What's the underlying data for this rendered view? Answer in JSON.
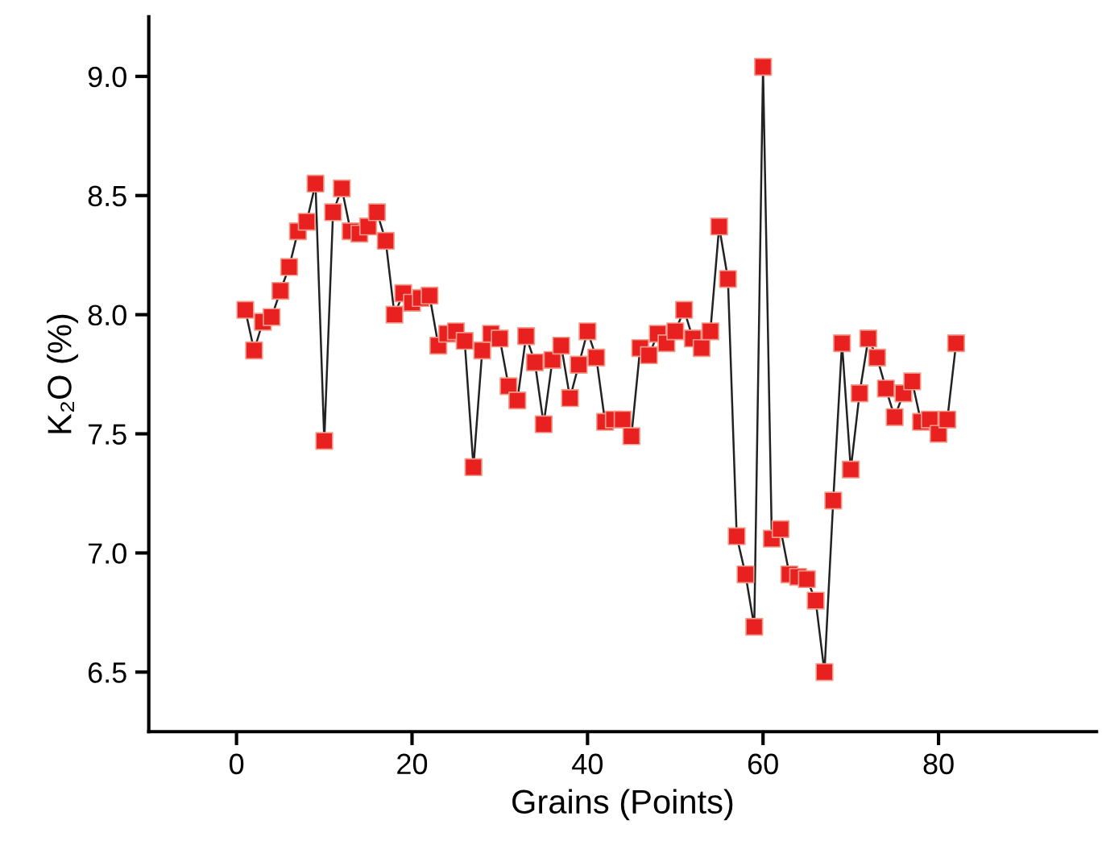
{
  "chart_data": {
    "type": "line",
    "xlabel": "Grains (Points)",
    "ylabel": "K₂O (%)",
    "x": [
      1,
      2,
      3,
      4,
      5,
      6,
      7,
      8,
      9,
      10,
      11,
      12,
      13,
      14,
      15,
      16,
      17,
      18,
      19,
      20,
      21,
      22,
      23,
      24,
      25,
      26,
      27,
      28,
      29,
      30,
      31,
      32,
      33,
      34,
      35,
      36,
      37,
      38,
      39,
      40,
      41,
      42,
      43,
      44,
      45,
      46,
      47,
      48,
      49,
      50,
      51,
      52,
      53,
      54,
      55,
      56,
      57,
      58,
      59,
      60,
      61,
      62,
      63,
      64,
      65,
      66,
      67,
      68,
      69,
      70,
      71,
      72,
      73,
      74,
      75,
      76,
      77,
      78,
      79,
      80,
      81,
      82
    ],
    "series": [
      {
        "color": "#e8201f",
        "values": [
          8.02,
          7.85,
          7.97,
          7.99,
          8.1,
          8.2,
          8.35,
          8.39,
          8.55,
          7.47,
          8.43,
          8.53,
          8.35,
          8.34,
          8.37,
          8.43,
          8.31,
          8.0,
          8.09,
          8.05,
          8.07,
          8.08,
          7.87,
          7.92,
          7.93,
          7.89,
          7.36,
          7.85,
          7.92,
          7.9,
          7.7,
          7.64,
          7.91,
          7.8,
          7.54,
          7.81,
          7.87,
          7.65,
          7.79,
          7.93,
          7.82,
          7.55,
          7.56,
          7.56,
          7.49,
          7.86,
          7.83,
          7.92,
          7.88,
          7.93,
          8.02,
          7.9,
          7.86,
          7.93,
          8.37,
          8.15,
          7.07,
          6.91,
          6.69,
          9.04,
          7.06,
          7.1,
          6.91,
          6.9,
          6.89,
          6.8,
          6.5,
          7.22,
          7.88,
          7.35,
          7.67,
          7.9,
          7.82,
          7.69,
          7.57,
          7.67,
          7.72,
          7.55,
          7.56,
          7.5,
          7.56,
          7.88
        ]
      }
    ],
    "xlim": [
      -10,
      98
    ],
    "ylim": [
      6.25,
      9.25
    ],
    "xticks": [
      0,
      20,
      40,
      60,
      80
    ],
    "yticks": [
      6.5,
      {
        "value": 7,
        "label": "7.0"
      },
      7.5,
      {
        "value": 8,
        "label": "8.0"
      },
      8.5,
      {
        "value": 9,
        "label": "9.0"
      }
    ],
    "marker": "square",
    "line_style": "solid",
    "grid": false,
    "legend": false
  }
}
